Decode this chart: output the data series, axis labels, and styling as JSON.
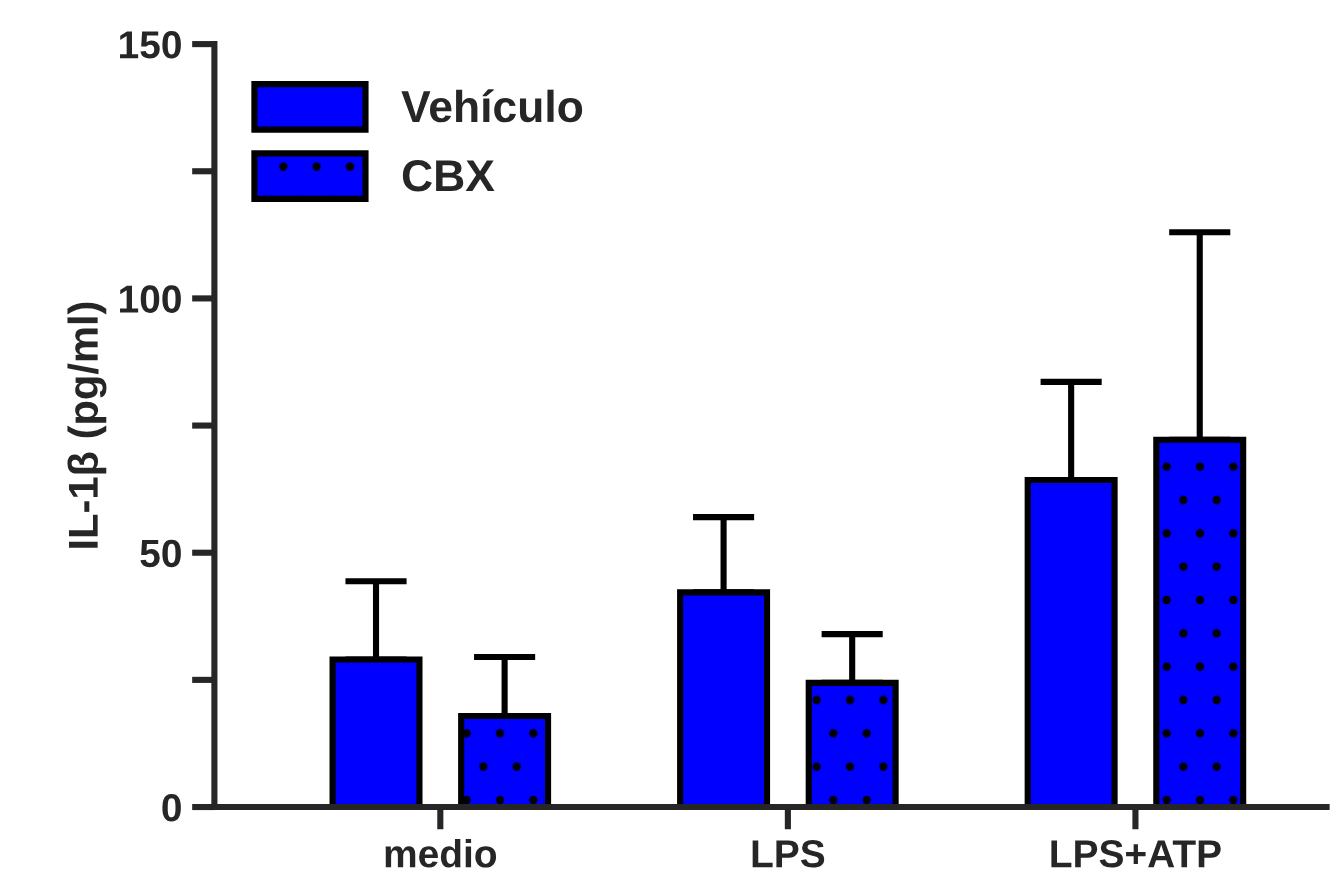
{
  "chart_data": {
    "type": "bar",
    "ylabel": "IL-1β (pg/ml)",
    "categories": [
      "medio",
      "LPS",
      "LPS+ATP"
    ],
    "series": [
      {
        "name": "Vehículo",
        "color": "#0000ff",
        "values": [
          29,
          42.2,
          64.3
        ],
        "errors": [
          [
            29,
            44.4
          ],
          [
            42.2,
            57
          ],
          [
            64.3,
            83.6
          ]
        ]
      },
      {
        "name": "CBX",
        "color": "#0000ff",
        "values": [
          17.9,
          24.4,
          72.2
        ],
        "errors": [
          [
            17.9,
            29.5
          ],
          [
            24.4,
            34
          ],
          [
            72.2,
            113
          ]
        ]
      }
    ],
    "ylim": [
      0,
      150
    ],
    "yticks": [
      0,
      {
        "value": 25,
        "label": null
      },
      50,
      {
        "value": 75,
        "label": null
      },
      100,
      {
        "value": 125,
        "label": null
      },
      150
    ],
    "grid": false,
    "legend": "top left"
  }
}
